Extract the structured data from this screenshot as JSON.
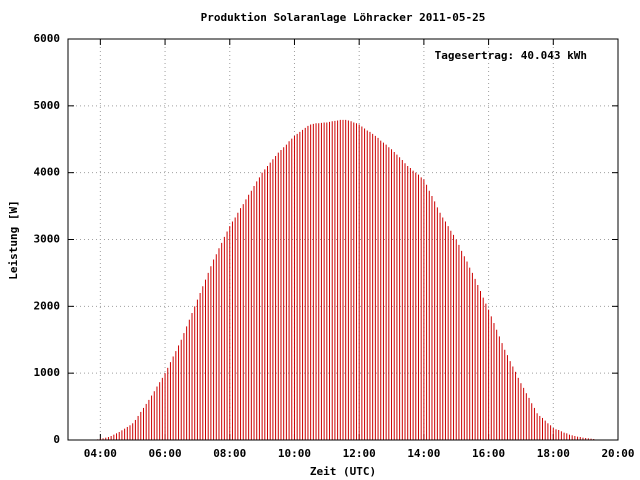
{
  "chart_data": {
    "type": "impulse",
    "title": "Produktion Solaranlage Löhracker 2011-05-25",
    "xlabel": "Zeit (UTC)",
    "ylabel": "Leistung [W]",
    "annotation": "Tagesertrag: 40.043 kWh",
    "color": "#cc0000",
    "grid": true,
    "xlim": [
      "03:00",
      "20:00"
    ],
    "xticks": [
      "04:00",
      "06:00",
      "08:00",
      "10:00",
      "12:00",
      "14:00",
      "16:00",
      "18:00",
      "20:00"
    ],
    "ylim": [
      0,
      6000
    ],
    "yticks": [
      0,
      1000,
      2000,
      3000,
      4000,
      5000,
      6000
    ],
    "x": [
      "03:50",
      "03:55",
      "04:00",
      "04:05",
      "04:10",
      "04:15",
      "04:20",
      "04:25",
      "04:30",
      "04:35",
      "04:40",
      "04:45",
      "04:50",
      "04:55",
      "05:00",
      "05:05",
      "05:10",
      "05:15",
      "05:20",
      "05:25",
      "05:30",
      "05:35",
      "05:40",
      "05:45",
      "05:50",
      "05:55",
      "06:00",
      "06:05",
      "06:10",
      "06:15",
      "06:20",
      "06:25",
      "06:30",
      "06:35",
      "06:40",
      "06:45",
      "06:50",
      "06:55",
      "07:00",
      "07:05",
      "07:10",
      "07:15",
      "07:20",
      "07:25",
      "07:30",
      "07:35",
      "07:40",
      "07:45",
      "07:50",
      "07:55",
      "08:00",
      "08:05",
      "08:10",
      "08:15",
      "08:20",
      "08:25",
      "08:30",
      "08:35",
      "08:40",
      "08:45",
      "08:50",
      "08:55",
      "09:00",
      "09:05",
      "09:10",
      "09:15",
      "09:20",
      "09:25",
      "09:30",
      "09:35",
      "09:40",
      "09:45",
      "09:50",
      "09:55",
      "10:00",
      "10:05",
      "10:10",
      "10:15",
      "10:20",
      "10:25",
      "10:30",
      "10:35",
      "10:40",
      "10:45",
      "10:50",
      "10:55",
      "11:00",
      "11:05",
      "11:10",
      "11:15",
      "11:20",
      "11:25",
      "11:30",
      "11:35",
      "11:40",
      "11:45",
      "11:50",
      "11:55",
      "12:00",
      "12:05",
      "12:10",
      "12:15",
      "12:20",
      "12:25",
      "12:30",
      "12:35",
      "12:40",
      "12:45",
      "12:50",
      "12:55",
      "13:00",
      "13:05",
      "13:10",
      "13:15",
      "13:20",
      "13:25",
      "13:30",
      "13:35",
      "13:40",
      "13:45",
      "13:50",
      "13:55",
      "14:00",
      "14:05",
      "14:10",
      "14:15",
      "14:20",
      "14:25",
      "14:30",
      "14:35",
      "14:40",
      "14:45",
      "14:50",
      "14:55",
      "15:00",
      "15:05",
      "15:10",
      "15:15",
      "15:20",
      "15:25",
      "15:30",
      "15:35",
      "15:40",
      "15:45",
      "15:50",
      "15:55",
      "16:00",
      "16:05",
      "16:10",
      "16:15",
      "16:20",
      "16:25",
      "16:30",
      "16:35",
      "16:40",
      "16:45",
      "16:50",
      "16:55",
      "17:00",
      "17:05",
      "17:10",
      "17:15",
      "17:20",
      "17:25",
      "17:30",
      "17:35",
      "17:40",
      "17:45",
      "17:50",
      "17:55",
      "18:00",
      "18:05",
      "18:10",
      "18:15",
      "18:20",
      "18:25",
      "18:30",
      "18:35",
      "18:40",
      "18:45",
      "18:50",
      "18:55",
      "19:00",
      "19:05",
      "19:10",
      "19:15"
    ],
    "values": [
      5,
      10,
      20,
      25,
      35,
      45,
      60,
      80,
      100,
      120,
      145,
      170,
      195,
      220,
      250,
      300,
      360,
      420,
      480,
      540,
      600,
      665,
      730,
      800,
      865,
      930,
      1000,
      1080,
      1165,
      1250,
      1330,
      1415,
      1500,
      1600,
      1700,
      1800,
      1900,
      2000,
      2100,
      2200,
      2300,
      2400,
      2500,
      2600,
      2700,
      2780,
      2870,
      2950,
      3040,
      3120,
      3200,
      3270,
      3330,
      3400,
      3470,
      3530,
      3600,
      3670,
      3730,
      3800,
      3870,
      3930,
      4000,
      4050,
      4100,
      4150,
      4200,
      4250,
      4300,
      4340,
      4380,
      4420,
      4470,
      4510,
      4550,
      4580,
      4610,
      4640,
      4670,
      4700,
      4720,
      4730,
      4740,
      4740,
      4745,
      4750,
      4750,
      4760,
      4770,
      4775,
      4780,
      4790,
      4790,
      4790,
      4780,
      4770,
      4750,
      4740,
      4720,
      4690,
      4660,
      4630,
      4610,
      4580,
      4550,
      4520,
      4480,
      4450,
      4420,
      4380,
      4350,
      4310,
      4270,
      4230,
      4190,
      4140,
      4100,
      4070,
      4030,
      4000,
      3970,
      3930,
      3900,
      3820,
      3730,
      3650,
      3570,
      3480,
      3400,
      3330,
      3270,
      3200,
      3130,
      3070,
      3000,
      2920,
      2830,
      2750,
      2670,
      2580,
      2500,
      2410,
      2320,
      2230,
      2130,
      2040,
      1950,
      1850,
      1750,
      1650,
      1550,
      1450,
      1350,
      1270,
      1180,
      1100,
      1020,
      930,
      850,
      780,
      700,
      630,
      550,
      480,
      400,
      360,
      330,
      290,
      250,
      220,
      180,
      160,
      150,
      130,
      110,
      100,
      80,
      70,
      60,
      50,
      45,
      35,
      30,
      25,
      20,
      15
    ]
  }
}
